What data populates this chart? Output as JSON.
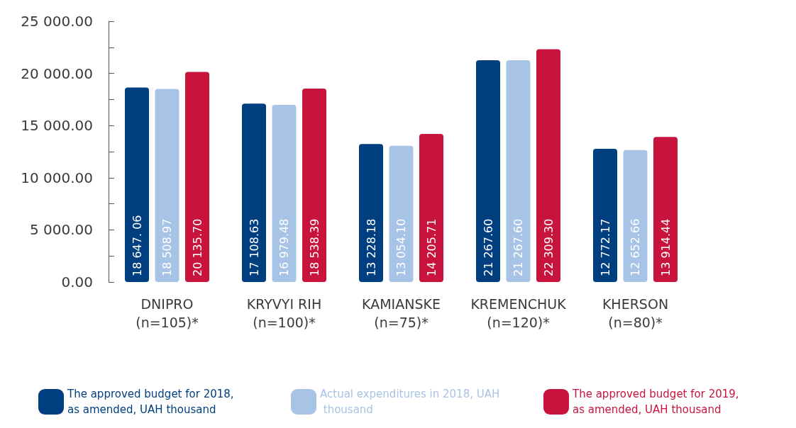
{
  "chart_data": {
    "type": "bar",
    "categories": [
      "DNIPRO\n(n=105)*",
      "KRYVYI RIH\n(n=100)*",
      "KAMIANSKE\n(n=75)*",
      "KREMENCHUK\n(n=120)*",
      "KHERSON\n(n=80)*"
    ],
    "series": [
      {
        "name": "The approved budget for 2018, as amended, UAH thousand",
        "color": "#003f7f",
        "values": [
          18647.06,
          17108.63,
          13228.18,
          21267.6,
          12772.17
        ],
        "value_labels": [
          "18 647. 06",
          "17 108.63",
          "13 228.18",
          "21 267.60",
          "12 772.17"
        ]
      },
      {
        "name": "Actual expenditures in 2018, UAH thousand",
        "color": "#a7c3e5",
        "values": [
          18508.97,
          16979.48,
          13054.1,
          21267.6,
          12652.66
        ],
        "value_labels": [
          "18 508.97",
          "16 979.48",
          "13 054.10",
          "21 267.60",
          "12 652.66"
        ]
      },
      {
        "name": "The approved budget for 2019, as amended, UAH thousand",
        "color": "#c8143c",
        "values": [
          20135.7,
          18538.39,
          14205.71,
          22309.3,
          13914.44
        ],
        "value_labels": [
          "20 135.70",
          "18 538.39",
          "14 205.71",
          "22 309.30",
          "13 914.44"
        ]
      }
    ],
    "ylim": [
      0,
      25000
    ],
    "yticks": [
      {
        "value": 0,
        "label": "0.00"
      },
      {
        "value": 2500,
        "label": null
      },
      {
        "value": 5000,
        "label": "5 000.00"
      },
      {
        "value": 7500,
        "label": null
      },
      {
        "value": 10000,
        "label": "10 000.00"
      },
      {
        "value": 12500,
        "label": null
      },
      {
        "value": 15000,
        "label": "15 000.00"
      },
      {
        "value": 17500,
        "label": null
      },
      {
        "value": 20000,
        "label": "20 000.00"
      },
      {
        "value": 22500,
        "label": null
      },
      {
        "value": 25000,
        "label": "25 000.00"
      }
    ],
    "grid": false,
    "legend": "bottom"
  }
}
